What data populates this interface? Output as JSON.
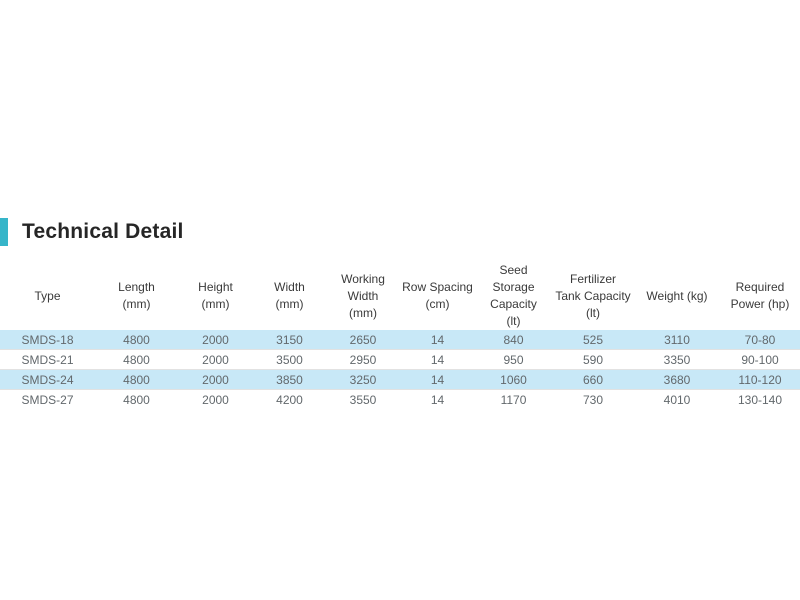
{
  "heading": {
    "title": "Technical Detail"
  },
  "colors": {
    "accent": "#36b5c9",
    "row_highlight": "#c8e8f7",
    "header_text": "#3a3a3a",
    "data_text": "#62686c"
  },
  "table": {
    "columns": [
      "Type",
      "Length\n(mm)",
      "Height\n(mm)",
      "Width\n(mm)",
      "Working\nWidth\n(mm)",
      "Row Spacing\n(cm)",
      "Seed Storage\nCapacity\n(lt)",
      "Fertilizer\nTank Capacity\n(lt)",
      "Weight (kg)",
      "Required\nPower (hp)"
    ],
    "rows": [
      [
        "SMDS-18",
        "4800",
        "2000",
        "3150",
        "2650",
        "14",
        "840",
        "525",
        "3110",
        "70-80"
      ],
      [
        "SMDS-21",
        "4800",
        "2000",
        "3500",
        "2950",
        "14",
        "950",
        "590",
        "3350",
        "90-100"
      ],
      [
        "SMDS-24",
        "4800",
        "2000",
        "3850",
        "3250",
        "14",
        "1060",
        "660",
        "3680",
        "110-120"
      ],
      [
        "SMDS-27",
        "4800",
        "2000",
        "4200",
        "3550",
        "14",
        "1170",
        "730",
        "4010",
        "130-140"
      ]
    ]
  }
}
